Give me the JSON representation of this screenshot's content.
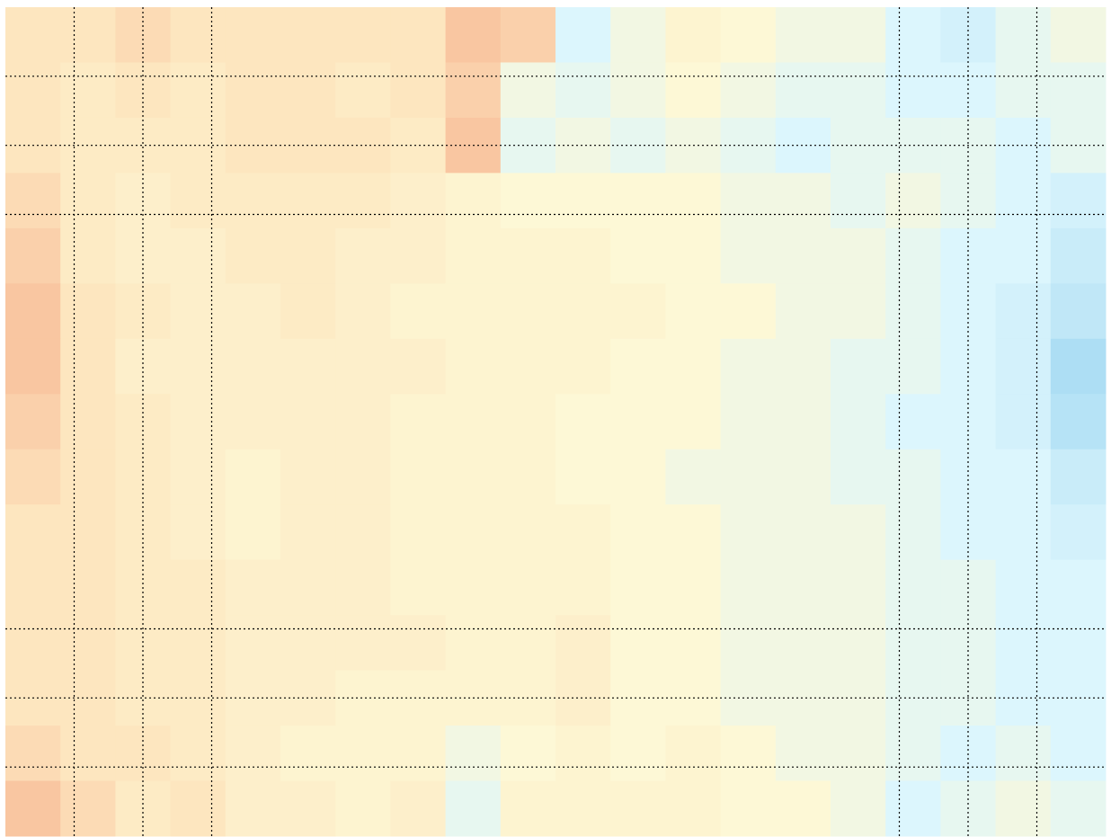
{
  "chart_data": {
    "type": "heatmap",
    "xlim": [
      0,
      160
    ],
    "ylim": [
      0,
      120
    ],
    "y_inverted": true,
    "xticks": [
      10,
      20,
      30,
      130,
      140,
      150
    ],
    "yticks": [
      10,
      20,
      30,
      90,
      100,
      110
    ],
    "grid": true,
    "grid_style": "dotted",
    "grid_color": "#000000",
    "vlim": [
      -1,
      1
    ],
    "colorscale": [
      [
        -1,
        "#3a6fd8"
      ],
      [
        -0.5,
        "#9ad4f0"
      ],
      [
        -0.15,
        "#dcf6fd"
      ],
      [
        0,
        "#fdf8d6"
      ],
      [
        0.2,
        "#fde6bf"
      ],
      [
        0.5,
        "#f4a582"
      ],
      [
        1,
        "#d6453a"
      ]
    ],
    "values": [
      [
        0.2,
        0.2,
        0.25,
        0.2,
        0.2,
        0.2,
        0.2,
        0.2,
        0.35,
        0.3,
        -0.15,
        -0.05,
        0.05,
        0.0,
        -0.05,
        -0.05,
        -0.15,
        -0.2,
        -0.1,
        -0.05
      ],
      [
        0.2,
        0.15,
        0.2,
        0.15,
        0.2,
        0.2,
        0.15,
        0.2,
        0.3,
        -0.05,
        -0.1,
        -0.05,
        0.0,
        -0.05,
        -0.1,
        -0.1,
        -0.15,
        -0.15,
        -0.1,
        -0.1
      ],
      [
        0.2,
        0.15,
        0.15,
        0.15,
        0.2,
        0.2,
        0.2,
        0.15,
        0.35,
        -0.1,
        -0.05,
        -0.1,
        -0.05,
        -0.1,
        -0.15,
        -0.1,
        -0.1,
        -0.1,
        -0.15,
        -0.1
      ],
      [
        0.25,
        0.15,
        0.1,
        0.15,
        0.15,
        0.15,
        0.15,
        0.1,
        0.05,
        0.0,
        0.0,
        0.0,
        0.0,
        -0.05,
        -0.05,
        -0.1,
        -0.05,
        -0.1,
        -0.15,
        -0.2
      ],
      [
        0.3,
        0.15,
        0.1,
        0.1,
        0.15,
        0.15,
        0.1,
        0.1,
        0.05,
        0.05,
        0.05,
        0.0,
        0.0,
        -0.05,
        -0.05,
        -0.05,
        -0.1,
        -0.15,
        -0.15,
        -0.25
      ],
      [
        0.35,
        0.2,
        0.15,
        0.1,
        0.1,
        0.15,
        0.1,
        0.05,
        0.05,
        0.05,
        0.05,
        0.05,
        0.0,
        0.0,
        -0.05,
        -0.05,
        -0.1,
        -0.15,
        -0.2,
        -0.3
      ],
      [
        0.35,
        0.2,
        0.1,
        0.1,
        0.1,
        0.1,
        0.1,
        0.1,
        0.05,
        0.05,
        0.05,
        0.0,
        0.0,
        -0.05,
        -0.05,
        -0.1,
        -0.1,
        -0.15,
        -0.2,
        -0.4
      ],
      [
        0.3,
        0.2,
        0.15,
        0.1,
        0.1,
        0.1,
        0.1,
        0.05,
        0.05,
        0.05,
        0.0,
        0.0,
        0.0,
        -0.05,
        -0.05,
        -0.1,
        -0.15,
        -0.15,
        -0.2,
        -0.35
      ],
      [
        0.25,
        0.2,
        0.15,
        0.1,
        0.05,
        0.1,
        0.1,
        0.05,
        0.05,
        0.05,
        0.0,
        0.0,
        -0.05,
        -0.05,
        -0.05,
        -0.1,
        -0.1,
        -0.15,
        -0.15,
        -0.25
      ],
      [
        0.2,
        0.2,
        0.15,
        0.1,
        0.05,
        0.1,
        0.1,
        0.05,
        0.05,
        0.05,
        0.05,
        0.0,
        0.0,
        -0.05,
        -0.05,
        -0.05,
        -0.1,
        -0.15,
        -0.15,
        -0.2
      ],
      [
        0.2,
        0.2,
        0.15,
        0.15,
        0.1,
        0.1,
        0.1,
        0.05,
        0.05,
        0.05,
        0.05,
        0.0,
        0.0,
        -0.05,
        -0.05,
        -0.05,
        -0.1,
        -0.1,
        -0.15,
        -0.15
      ],
      [
        0.2,
        0.2,
        0.15,
        0.15,
        0.1,
        0.1,
        0.1,
        0.1,
        0.05,
        0.05,
        0.1,
        0.0,
        0.0,
        -0.05,
        -0.05,
        -0.05,
        -0.1,
        -0.1,
        -0.15,
        -0.15
      ],
      [
        0.2,
        0.2,
        0.15,
        0.15,
        0.1,
        0.1,
        0.05,
        0.05,
        0.05,
        0.05,
        0.1,
        0.0,
        0.0,
        -0.05,
        -0.05,
        -0.05,
        -0.1,
        -0.1,
        -0.15,
        -0.15
      ],
      [
        0.25,
        0.2,
        0.2,
        0.15,
        0.1,
        0.05,
        0.05,
        0.05,
        -0.05,
        0.0,
        0.05,
        0.0,
        0.05,
        0.0,
        -0.05,
        -0.05,
        -0.1,
        -0.15,
        -0.1,
        -0.15
      ],
      [
        0.35,
        0.25,
        0.15,
        0.2,
        0.1,
        0.1,
        0.05,
        0.1,
        -0.1,
        0.05,
        0.05,
        0.05,
        0.05,
        0.0,
        0.0,
        -0.05,
        -0.15,
        -0.1,
        -0.05,
        -0.1
      ]
    ]
  }
}
